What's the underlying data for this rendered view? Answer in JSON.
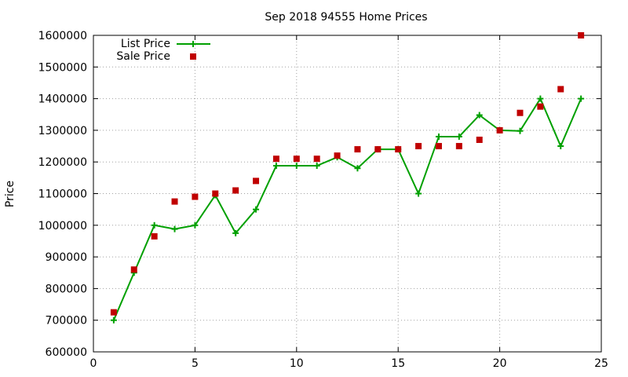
{
  "chart_data": {
    "type": "line",
    "title": "Sep 2018 94555 Home Prices",
    "xlabel": "",
    "ylabel": "Price",
    "xlim": [
      0,
      25
    ],
    "ylim": [
      600000,
      1600000
    ],
    "xticks": [
      0,
      5,
      10,
      15,
      20,
      25
    ],
    "yticks": [
      600000,
      700000,
      800000,
      900000,
      1000000,
      1100000,
      1200000,
      1300000,
      1400000,
      1500000,
      1600000
    ],
    "grid": true,
    "legend_position": "top-left",
    "series": [
      {
        "name": "List Price",
        "style": "line-cross",
        "color": "#00a000",
        "x": [
          1,
          2,
          3,
          4,
          5,
          6,
          7,
          8,
          9,
          10,
          11,
          12,
          13,
          14,
          15,
          16,
          17,
          18,
          19,
          20,
          21,
          22,
          23,
          24
        ],
        "values": [
          700000,
          850000,
          1000000,
          988000,
          1000000,
          1095000,
          975000,
          1050000,
          1188000,
          1188000,
          1188000,
          1215000,
          1180000,
          1240000,
          1240000,
          1100000,
          1280000,
          1280000,
          1348000,
          1300000,
          1298000,
          1400000,
          1250000,
          1400000
        ]
      },
      {
        "name": "Sale Price",
        "style": "square",
        "color": "#c00000",
        "x": [
          1,
          2,
          3,
          4,
          5,
          6,
          7,
          8,
          9,
          10,
          11,
          12,
          13,
          14,
          15,
          16,
          17,
          18,
          19,
          20,
          21,
          22,
          23,
          24
        ],
        "values": [
          725000,
          860000,
          965000,
          1075000,
          1090000,
          1100000,
          1110000,
          1140000,
          1210000,
          1210000,
          1210000,
          1220000,
          1240000,
          1240000,
          1240000,
          1250000,
          1250000,
          1250000,
          1270000,
          1300000,
          1355000,
          1375000,
          1430000,
          1600000
        ]
      }
    ]
  }
}
